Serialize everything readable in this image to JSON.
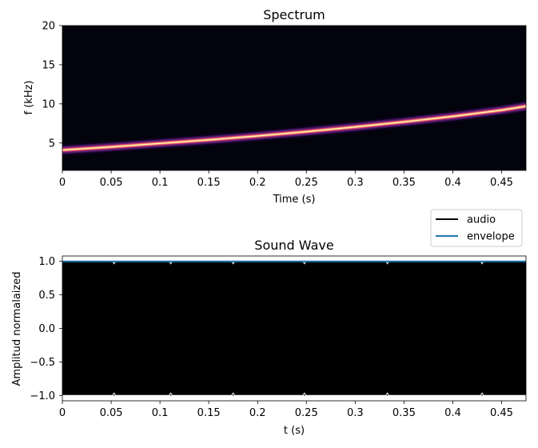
{
  "chart_data": [
    {
      "type": "heatmap",
      "title": "Spectrum",
      "xlabel": "Time (s)",
      "ylabel": "f (kHz)",
      "xlim": [
        0,
        0.475
      ],
      "ylim": [
        1.5,
        20
      ],
      "xticks": [
        0,
        0.05,
        0.1,
        0.15,
        0.2,
        0.25,
        0.3,
        0.35,
        0.4,
        0.45
      ],
      "xtick_labels": [
        "0",
        "0.05",
        "0.1",
        "0.15",
        "0.2",
        "0.25",
        "0.3",
        "0.35",
        "0.4",
        "0.45"
      ],
      "yticks": [
        5,
        10,
        15,
        20
      ],
      "ytick_labels": [
        "5",
        "10",
        "15",
        "20"
      ],
      "colormap": "magma",
      "background_color": "#03030d",
      "ridge": {
        "x": [
          0,
          0.05,
          0.1,
          0.15,
          0.2,
          0.25,
          0.3,
          0.35,
          0.4,
          0.45,
          0.475
        ],
        "y": [
          4.1,
          4.5,
          4.95,
          5.4,
          5.9,
          6.45,
          7.05,
          7.7,
          8.4,
          9.2,
          9.7
        ]
      }
    },
    {
      "type": "line",
      "title": "Sound Wave",
      "xlabel": "t (s)",
      "ylabel": "Amplitud normalaized",
      "xlim": [
        0,
        0.475
      ],
      "ylim": [
        -1.08,
        1.08
      ],
      "xticks": [
        0,
        0.05,
        0.1,
        0.15,
        0.2,
        0.25,
        0.3,
        0.35,
        0.4,
        0.45
      ],
      "xtick_labels": [
        "0",
        "0.05",
        "0.1",
        "0.15",
        "0.2",
        "0.25",
        "0.3",
        "0.35",
        "0.4",
        "0.45"
      ],
      "yticks": [
        -1.0,
        -0.5,
        0.0,
        0.5,
        1.0
      ],
      "ytick_labels": [
        "−1.0",
        "−0.5",
        "0.0",
        "0.5",
        "1.0"
      ],
      "legend_position": "above-right",
      "series": [
        {
          "name": "audio",
          "color": "#000000",
          "amplitude_range": [
            -1.0,
            1.0
          ]
        },
        {
          "name": "envelope",
          "color": "#1f77b4",
          "constant_value": 1.0
        }
      ]
    }
  ]
}
